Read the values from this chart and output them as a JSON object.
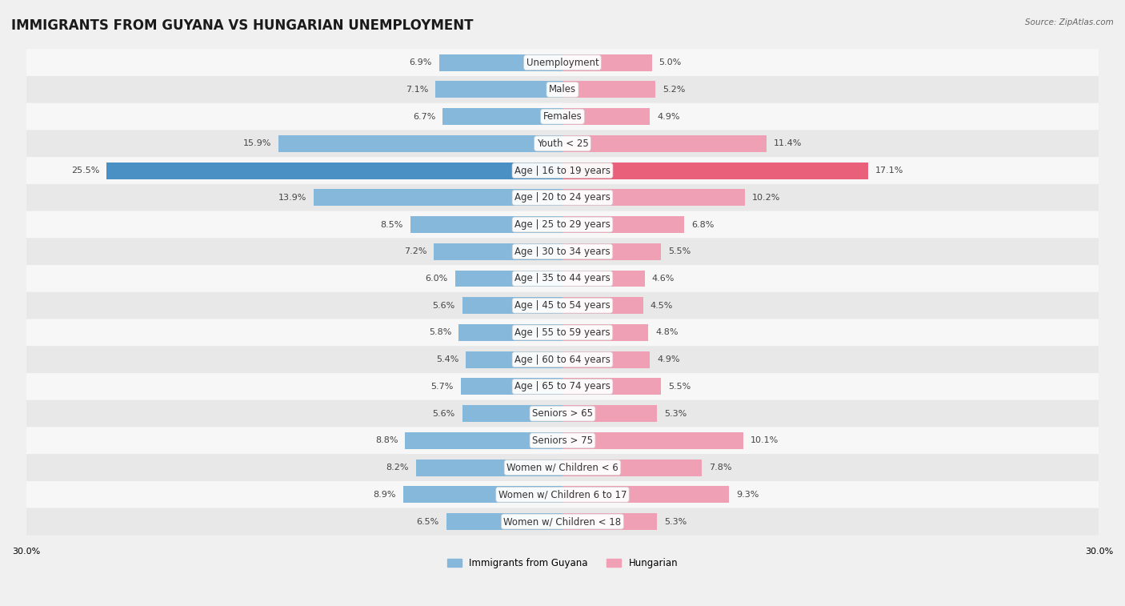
{
  "title": "IMMIGRANTS FROM GUYANA VS HUNGARIAN UNEMPLOYMENT",
  "source": "Source: ZipAtlas.com",
  "categories": [
    "Unemployment",
    "Males",
    "Females",
    "Youth < 25",
    "Age | 16 to 19 years",
    "Age | 20 to 24 years",
    "Age | 25 to 29 years",
    "Age | 30 to 34 years",
    "Age | 35 to 44 years",
    "Age | 45 to 54 years",
    "Age | 55 to 59 years",
    "Age | 60 to 64 years",
    "Age | 65 to 74 years",
    "Seniors > 65",
    "Seniors > 75",
    "Women w/ Children < 6",
    "Women w/ Children 6 to 17",
    "Women w/ Children < 18"
  ],
  "guyana_values": [
    6.9,
    7.1,
    6.7,
    15.9,
    25.5,
    13.9,
    8.5,
    7.2,
    6.0,
    5.6,
    5.8,
    5.4,
    5.7,
    5.6,
    8.8,
    8.2,
    8.9,
    6.5
  ],
  "hungarian_values": [
    5.0,
    5.2,
    4.9,
    11.4,
    17.1,
    10.2,
    6.8,
    5.5,
    4.6,
    4.5,
    4.8,
    4.9,
    5.5,
    5.3,
    10.1,
    7.8,
    9.3,
    5.3
  ],
  "guyana_color": "#85b8da",
  "hungarian_color": "#f0a0b5",
  "guyana_highlight_color": "#4a90c4",
  "hungarian_highlight_color": "#e8607a",
  "highlight_row": 4,
  "xlim": 30.0,
  "bar_height": 0.62,
  "background_color": "#f0f0f0",
  "row_light_color": "#f7f7f7",
  "row_dark_color": "#e8e8e8",
  "legend_guyana": "Immigrants from Guyana",
  "legend_hungarian": "Hungarian",
  "title_fontsize": 12,
  "label_fontsize": 8.5,
  "value_fontsize": 8,
  "source_fontsize": 7.5
}
